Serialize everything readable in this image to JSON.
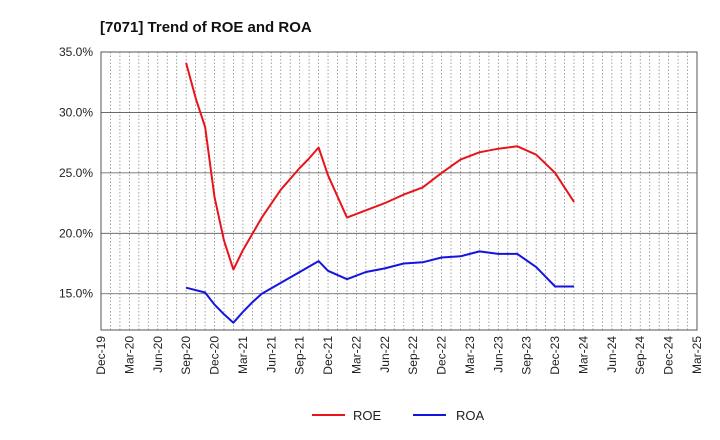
{
  "chart_data": {
    "type": "line",
    "title": "[7071]  Trend of ROE and ROA",
    "xlabel": "",
    "ylabel": "",
    "ylim": [
      12.0,
      35.0
    ],
    "yticks": [
      15.0,
      20.0,
      25.0,
      30.0,
      35.0
    ],
    "ytick_labels": [
      "15.0%",
      "20.0%",
      "25.0%",
      "30.0%",
      "35.0%"
    ],
    "x_tick_labels": [
      "Dec-19",
      "Mar-20",
      "Jun-20",
      "Sep-20",
      "Dec-20",
      "Mar-21",
      "Jun-21",
      "Sep-21",
      "Dec-21",
      "Mar-22",
      "Jun-22",
      "Sep-22",
      "Dec-22",
      "Mar-23",
      "Jun-23",
      "Sep-23",
      "Dec-23",
      "Mar-24",
      "Jun-24",
      "Sep-24",
      "Dec-24",
      "Mar-25"
    ],
    "x_unit": "months since Dec-19",
    "grid": "vertical dotted monthly, horizontal solid at y ticks",
    "legend_position": "bottom",
    "series": [
      {
        "name": "ROE",
        "color": "#e8141b",
        "x": [
          9,
          10,
          11,
          12,
          13,
          14,
          15,
          17,
          19,
          21,
          22,
          23,
          24,
          26,
          28,
          30,
          32,
          34,
          36,
          38,
          40,
          42,
          44,
          46,
          48,
          50
        ],
        "values": [
          34.1,
          31.2,
          28.8,
          23.0,
          19.4,
          17.0,
          18.6,
          21.3,
          23.6,
          25.4,
          26.2,
          27.1,
          24.8,
          21.3,
          21.9,
          22.5,
          23.2,
          23.8,
          25.0,
          26.1,
          26.7,
          27.0,
          27.2,
          26.5,
          25.0,
          22.6
        ]
      },
      {
        "name": "ROA",
        "color": "#1414e0",
        "x": [
          9,
          11,
          12,
          13,
          14,
          15,
          16,
          17,
          19,
          21,
          23,
          24,
          26,
          28,
          30,
          32,
          34,
          36,
          38,
          40,
          42,
          44,
          46,
          48,
          50
        ],
        "values": [
          15.5,
          15.1,
          14.1,
          13.3,
          12.6,
          13.5,
          14.3,
          15.0,
          15.9,
          16.8,
          17.7,
          16.9,
          16.2,
          16.8,
          17.1,
          17.5,
          17.6,
          18.0,
          18.1,
          18.5,
          18.3,
          18.3,
          17.2,
          15.6,
          15.6
        ]
      }
    ]
  }
}
